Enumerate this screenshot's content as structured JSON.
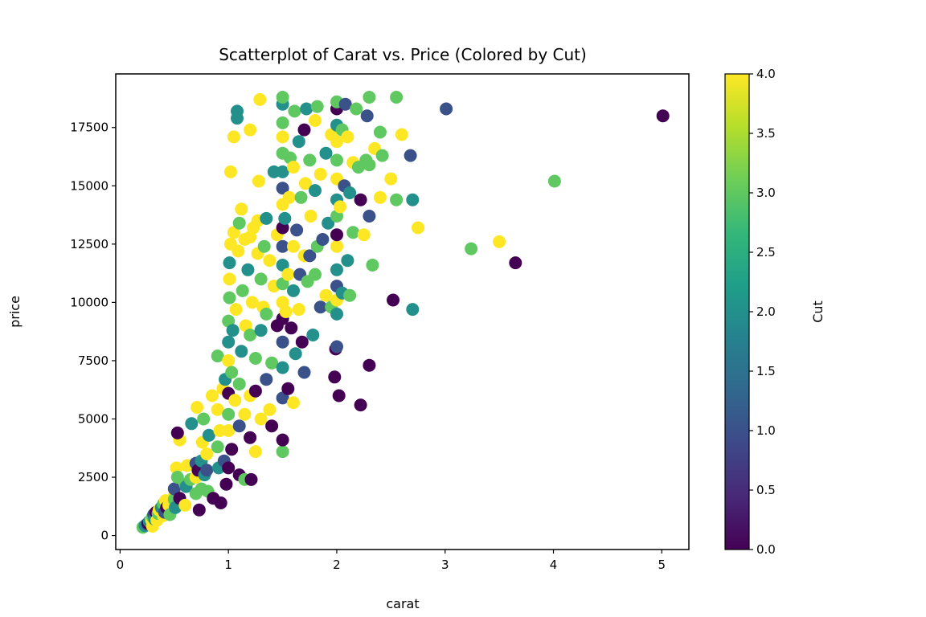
{
  "chart_data": {
    "type": "scatter",
    "title": "Scatterplot of Carat vs. Price (Colored by Cut)",
    "xlabel": "carat",
    "ylabel": "price",
    "xlim": [
      -0.04,
      5.25
    ],
    "ylim": [
      -600,
      19800
    ],
    "xticks": [
      0,
      1,
      2,
      3,
      4,
      5
    ],
    "yticks": [
      0,
      2500,
      5000,
      7500,
      10000,
      12500,
      15000,
      17500
    ],
    "grid": false,
    "colorbar": {
      "label": "Cut",
      "range": [
        0.0,
        4.0
      ],
      "ticks": [
        "0.0",
        "0.5",
        "1.0",
        "1.5",
        "2.0",
        "2.5",
        "3.0",
        "3.5",
        "4.0"
      ],
      "colormap": "viridis",
      "stops": [
        "#440154",
        "#482878",
        "#3e4989",
        "#31688e",
        "#26828e",
        "#1f9e89",
        "#35b779",
        "#6ece58",
        "#b5de2b",
        "#fde725"
      ]
    },
    "points": [
      [
        0.21,
        350,
        3
      ],
      [
        0.23,
        420,
        2
      ],
      [
        0.25,
        500,
        1
      ],
      [
        0.26,
        520,
        0
      ],
      [
        0.27,
        600,
        2
      ],
      [
        0.29,
        680,
        4
      ],
      [
        0.3,
        400,
        4
      ],
      [
        0.3,
        800,
        3
      ],
      [
        0.31,
        900,
        1
      ],
      [
        0.32,
        700,
        2
      ],
      [
        0.33,
        1000,
        0
      ],
      [
        0.34,
        650,
        4
      ],
      [
        0.35,
        950,
        3
      ],
      [
        0.36,
        1100,
        4
      ],
      [
        0.38,
        1200,
        2
      ],
      [
        0.4,
        850,
        4
      ],
      [
        0.4,
        1350,
        3
      ],
      [
        0.41,
        1000,
        1
      ],
      [
        0.42,
        1500,
        4
      ],
      [
        0.43,
        1200,
        0
      ],
      [
        0.45,
        1300,
        4
      ],
      [
        0.46,
        900,
        3
      ],
      [
        0.5,
        1700,
        4
      ],
      [
        0.5,
        1550,
        3
      ],
      [
        0.5,
        2000,
        1
      ],
      [
        0.51,
        1200,
        2
      ],
      [
        0.52,
        2900,
        4
      ],
      [
        0.53,
        2500,
        3
      ],
      [
        0.55,
        1600,
        0
      ],
      [
        0.55,
        4100,
        4
      ],
      [
        0.53,
        4400,
        0
      ],
      [
        0.6,
        2200,
        3
      ],
      [
        0.6,
        1300,
        4
      ],
      [
        0.61,
        2100,
        2
      ],
      [
        0.62,
        3000,
        4
      ],
      [
        0.65,
        2400,
        3
      ],
      [
        0.66,
        4800,
        2
      ],
      [
        0.7,
        2500,
        4
      ],
      [
        0.7,
        1800,
        3
      ],
      [
        0.7,
        3100,
        1
      ],
      [
        0.71,
        5500,
        4
      ],
      [
        0.72,
        2800,
        0
      ],
      [
        0.73,
        1100,
        0
      ],
      [
        0.75,
        2000,
        3
      ],
      [
        0.75,
        3200,
        2
      ],
      [
        0.76,
        4000,
        4
      ],
      [
        0.77,
        5000,
        3
      ],
      [
        0.78,
        2600,
        2
      ],
      [
        0.8,
        3500,
        4
      ],
      [
        0.8,
        2800,
        1
      ],
      [
        0.81,
        1900,
        3
      ],
      [
        0.82,
        4300,
        2
      ],
      [
        0.85,
        6000,
        4
      ],
      [
        0.86,
        1600,
        0
      ],
      [
        0.9,
        3800,
        3
      ],
      [
        0.9,
        7700,
        3
      ],
      [
        0.9,
        5400,
        4
      ],
      [
        0.91,
        2900,
        2
      ],
      [
        0.92,
        4500,
        4
      ],
      [
        0.93,
        1400,
        0
      ],
      [
        0.95,
        6300,
        4
      ],
      [
        0.96,
        3200,
        1
      ],
      [
        0.97,
        6700,
        2
      ],
      [
        0.98,
        2200,
        0
      ],
      [
        1.0,
        4500,
        4
      ],
      [
        1.0,
        5200,
        3
      ],
      [
        1.0,
        6100,
        0
      ],
      [
        1.0,
        7500,
        4
      ],
      [
        1.0,
        8300,
        2
      ],
      [
        1.0,
        9200,
        3
      ],
      [
        1.0,
        2900,
        0
      ],
      [
        1.01,
        10200,
        3
      ],
      [
        1.01,
        11000,
        4
      ],
      [
        1.01,
        11700,
        2
      ],
      [
        1.02,
        12500,
        4
      ],
      [
        1.02,
        15600,
        4
      ],
      [
        1.03,
        3700,
        0
      ],
      [
        1.03,
        7000,
        3
      ],
      [
        1.04,
        8800,
        2
      ],
      [
        1.05,
        13000,
        4
      ],
      [
        1.05,
        17100,
        4
      ],
      [
        1.06,
        5800,
        4
      ],
      [
        1.07,
        9700,
        4
      ],
      [
        1.08,
        17900,
        2
      ],
      [
        1.08,
        18200,
        2
      ],
      [
        1.09,
        12200,
        4
      ],
      [
        1.1,
        4700,
        1
      ],
      [
        1.1,
        2600,
        0
      ],
      [
        1.1,
        6500,
        3
      ],
      [
        1.1,
        13400,
        3
      ],
      [
        1.12,
        14000,
        4
      ],
      [
        1.12,
        7900,
        2
      ],
      [
        1.13,
        10500,
        3
      ],
      [
        1.15,
        2400,
        3
      ],
      [
        1.15,
        12700,
        4
      ],
      [
        1.15,
        5200,
        4
      ],
      [
        1.16,
        9000,
        4
      ],
      [
        1.18,
        11400,
        2
      ],
      [
        1.2,
        4200,
        0
      ],
      [
        1.2,
        6000,
        4
      ],
      [
        1.2,
        8600,
        3
      ],
      [
        1.2,
        12800,
        4
      ],
      [
        1.2,
        17400,
        4
      ],
      [
        1.21,
        2400,
        0
      ],
      [
        1.22,
        10000,
        4
      ],
      [
        1.23,
        13200,
        4
      ],
      [
        1.25,
        3600,
        4
      ],
      [
        1.25,
        6200,
        0
      ],
      [
        1.25,
        7600,
        3
      ],
      [
        1.27,
        12100,
        4
      ],
      [
        1.27,
        13500,
        4
      ],
      [
        1.28,
        15200,
        4
      ],
      [
        1.29,
        18700,
        4
      ],
      [
        1.3,
        5000,
        4
      ],
      [
        1.3,
        8800,
        2
      ],
      [
        1.3,
        11000,
        3
      ],
      [
        1.32,
        9800,
        4
      ],
      [
        1.33,
        12400,
        3
      ],
      [
        1.35,
        6700,
        1
      ],
      [
        1.35,
        9500,
        3
      ],
      [
        1.35,
        13600,
        2
      ],
      [
        1.38,
        5400,
        4
      ],
      [
        1.38,
        11800,
        4
      ],
      [
        1.4,
        4700,
        0
      ],
      [
        1.4,
        7400,
        3
      ],
      [
        1.42,
        10700,
        4
      ],
      [
        1.42,
        15600,
        2
      ],
      [
        1.45,
        9000,
        0
      ],
      [
        1.45,
        12900,
        4
      ],
      [
        1.5,
        3600,
        3
      ],
      [
        1.5,
        4100,
        0
      ],
      [
        1.5,
        5900,
        1
      ],
      [
        1.5,
        7200,
        2
      ],
      [
        1.5,
        8300,
        1
      ],
      [
        1.5,
        9300,
        0
      ],
      [
        1.5,
        10000,
        4
      ],
      [
        1.5,
        10800,
        3
      ],
      [
        1.5,
        11600,
        2
      ],
      [
        1.5,
        12400,
        1
      ],
      [
        1.5,
        13200,
        0
      ],
      [
        1.5,
        14200,
        4
      ],
      [
        1.5,
        14900,
        1
      ],
      [
        1.5,
        15600,
        2
      ],
      [
        1.5,
        16400,
        3
      ],
      [
        1.5,
        17100,
        4
      ],
      [
        1.5,
        17700,
        3
      ],
      [
        1.5,
        18500,
        2
      ],
      [
        1.5,
        18800,
        3
      ],
      [
        1.52,
        13600,
        2
      ],
      [
        1.53,
        9600,
        4
      ],
      [
        1.55,
        6300,
        0
      ],
      [
        1.55,
        11200,
        4
      ],
      [
        1.56,
        14500,
        4
      ],
      [
        1.57,
        16200,
        3
      ],
      [
        1.58,
        8900,
        0
      ],
      [
        1.6,
        5700,
        4
      ],
      [
        1.6,
        10500,
        2
      ],
      [
        1.6,
        12400,
        4
      ],
      [
        1.6,
        15800,
        4
      ],
      [
        1.61,
        18200,
        3
      ],
      [
        1.62,
        7800,
        2
      ],
      [
        1.63,
        13100,
        1
      ],
      [
        1.65,
        9700,
        4
      ],
      [
        1.65,
        16900,
        2
      ],
      [
        1.66,
        11200,
        1
      ],
      [
        1.67,
        14500,
        3
      ],
      [
        1.68,
        8300,
        0
      ],
      [
        1.7,
        7000,
        1
      ],
      [
        1.7,
        12000,
        4
      ],
      [
        1.7,
        17400,
        0
      ],
      [
        1.71,
        15100,
        4
      ],
      [
        1.72,
        18300,
        2
      ],
      [
        1.73,
        10900,
        3
      ],
      [
        1.75,
        12000,
        1
      ],
      [
        1.75,
        16100,
        3
      ],
      [
        1.76,
        13700,
        4
      ],
      [
        1.78,
        8600,
        2
      ],
      [
        1.8,
        11200,
        3
      ],
      [
        1.8,
        14800,
        2
      ],
      [
        1.8,
        17800,
        4
      ],
      [
        1.82,
        12400,
        3
      ],
      [
        1.82,
        18400,
        3
      ],
      [
        1.85,
        9800,
        1
      ],
      [
        1.85,
        15500,
        4
      ],
      [
        1.87,
        12700,
        1
      ],
      [
        1.9,
        10300,
        4
      ],
      [
        1.9,
        16400,
        2
      ],
      [
        1.92,
        13400,
        2
      ],
      [
        1.95,
        9800,
        3
      ],
      [
        1.95,
        17200,
        4
      ],
      [
        1.98,
        6800,
        0
      ],
      [
        1.99,
        8000,
        0
      ],
      [
        2.0,
        8100,
        1
      ],
      [
        2.0,
        9500,
        2
      ],
      [
        2.0,
        10100,
        4
      ],
      [
        2.0,
        10700,
        1
      ],
      [
        2.0,
        11400,
        2
      ],
      [
        2.0,
        12400,
        4
      ],
      [
        2.0,
        12900,
        0
      ],
      [
        2.0,
        13700,
        3
      ],
      [
        2.0,
        14400,
        2
      ],
      [
        2.0,
        15300,
        4
      ],
      [
        2.0,
        16100,
        3
      ],
      [
        2.0,
        16900,
        4
      ],
      [
        2.0,
        17600,
        2
      ],
      [
        2.0,
        18300,
        0
      ],
      [
        2.0,
        18600,
        3
      ],
      [
        2.02,
        6000,
        0
      ],
      [
        2.03,
        14100,
        4
      ],
      [
        2.05,
        17400,
        3
      ],
      [
        2.05,
        10400,
        2
      ],
      [
        2.07,
        15000,
        1
      ],
      [
        2.08,
        18500,
        1
      ],
      [
        2.1,
        11800,
        2
      ],
      [
        2.1,
        17100,
        4
      ],
      [
        2.12,
        14700,
        2
      ],
      [
        2.12,
        10300,
        3
      ],
      [
        2.15,
        13000,
        3
      ],
      [
        2.15,
        16000,
        4
      ],
      [
        2.18,
        18300,
        3
      ],
      [
        2.2,
        15800,
        3
      ],
      [
        2.22,
        5600,
        0
      ],
      [
        2.22,
        14400,
        0
      ],
      [
        2.25,
        12900,
        4
      ],
      [
        2.27,
        16100,
        3
      ],
      [
        2.28,
        18000,
        1
      ],
      [
        2.3,
        7300,
        0
      ],
      [
        2.3,
        13700,
        1
      ],
      [
        2.3,
        15900,
        3
      ],
      [
        2.3,
        18800,
        3
      ],
      [
        2.33,
        11600,
        3
      ],
      [
        2.35,
        16600,
        4
      ],
      [
        2.4,
        17300,
        3
      ],
      [
        2.4,
        14500,
        4
      ],
      [
        2.42,
        16300,
        3
      ],
      [
        2.5,
        15300,
        4
      ],
      [
        2.52,
        10100,
        0
      ],
      [
        2.55,
        14400,
        3
      ],
      [
        2.55,
        18800,
        3
      ],
      [
        2.6,
        17200,
        4
      ],
      [
        2.68,
        16300,
        1
      ],
      [
        2.7,
        9700,
        2
      ],
      [
        2.7,
        14400,
        2
      ],
      [
        2.75,
        13200,
        4
      ],
      [
        3.01,
        18300,
        1
      ],
      [
        3.24,
        12300,
        3
      ],
      [
        3.5,
        12600,
        4
      ],
      [
        3.65,
        11700,
        0
      ],
      [
        4.01,
        15200,
        3
      ],
      [
        5.01,
        18000,
        0
      ]
    ]
  }
}
